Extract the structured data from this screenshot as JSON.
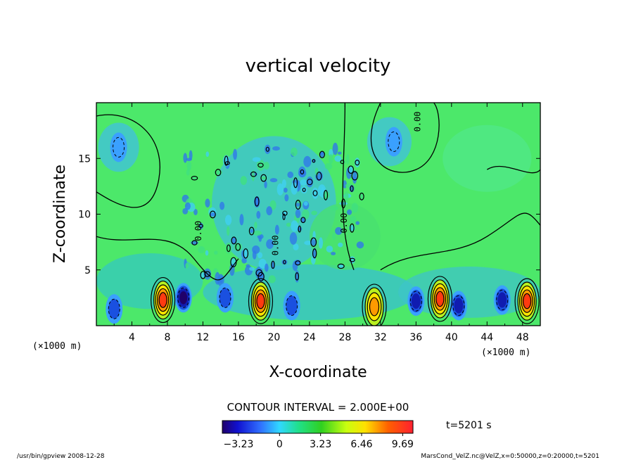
{
  "chart_data": {
    "type": "heatmap",
    "title": "vertical velocity",
    "xlabel": "X-coordinate",
    "ylabel": "Z-coordinate",
    "x_unit": "(×1000 m)",
    "y_unit": "(×1000 m)",
    "xlim": [
      0,
      50
    ],
    "ylim": [
      0,
      20
    ],
    "x_ticks": [
      4,
      8,
      12,
      16,
      20,
      24,
      28,
      32,
      36,
      40,
      44,
      48
    ],
    "y_ticks": [
      5,
      10,
      15
    ],
    "contour_interval_label": "CONTOUR INTERVAL = 2.000E+00",
    "contour_labels": [
      "0.00",
      "0.00",
      "0.00",
      "0.00"
    ],
    "colorbar": {
      "range": [
        -4.5,
        10.5
      ],
      "ticks": [
        -3.23,
        0,
        3.23,
        6.46,
        9.69
      ],
      "tick_labels": [
        "−3.23",
        "0",
        "3.23",
        "6.46",
        "9.69"
      ]
    },
    "updrafts": [
      {
        "x": 7.5,
        "z": 2.3,
        "peak": 9.5
      },
      {
        "x": 18.5,
        "z": 2.2,
        "peak": 9.5
      },
      {
        "x": 31.3,
        "z": 1.7,
        "peak": 7.0
      },
      {
        "x": 38.7,
        "z": 2.4,
        "peak": 9.0
      },
      {
        "x": 48.5,
        "z": 2.2,
        "peak": 9.0
      }
    ],
    "downdrafts": [
      {
        "x": 9.8,
        "z": 2.5,
        "peak": -4.0
      },
      {
        "x": 14.5,
        "z": 2.5,
        "peak": -2.5
      },
      {
        "x": 36.0,
        "z": 2.2,
        "peak": -3.5
      },
      {
        "x": 40.8,
        "z": 1.8,
        "peak": -3.5
      },
      {
        "x": 45.7,
        "z": 2.3,
        "peak": -3.5
      },
      {
        "x": 2.0,
        "z": 1.5,
        "peak": -2.5
      },
      {
        "x": 22.0,
        "z": 1.8,
        "peak": -2.5
      },
      {
        "x": 33.5,
        "z": 16.5,
        "peak": -1.5
      },
      {
        "x": 2.5,
        "z": 16.0,
        "peak": -1.5
      }
    ]
  },
  "time_label": "t=5201 s",
  "footer_left": "/usr/bin/gpview   2008-12-28",
  "footer_right": "MarsCond_VelZ.nc@VelZ,x=0:50000,z=0:20000,t=5201"
}
